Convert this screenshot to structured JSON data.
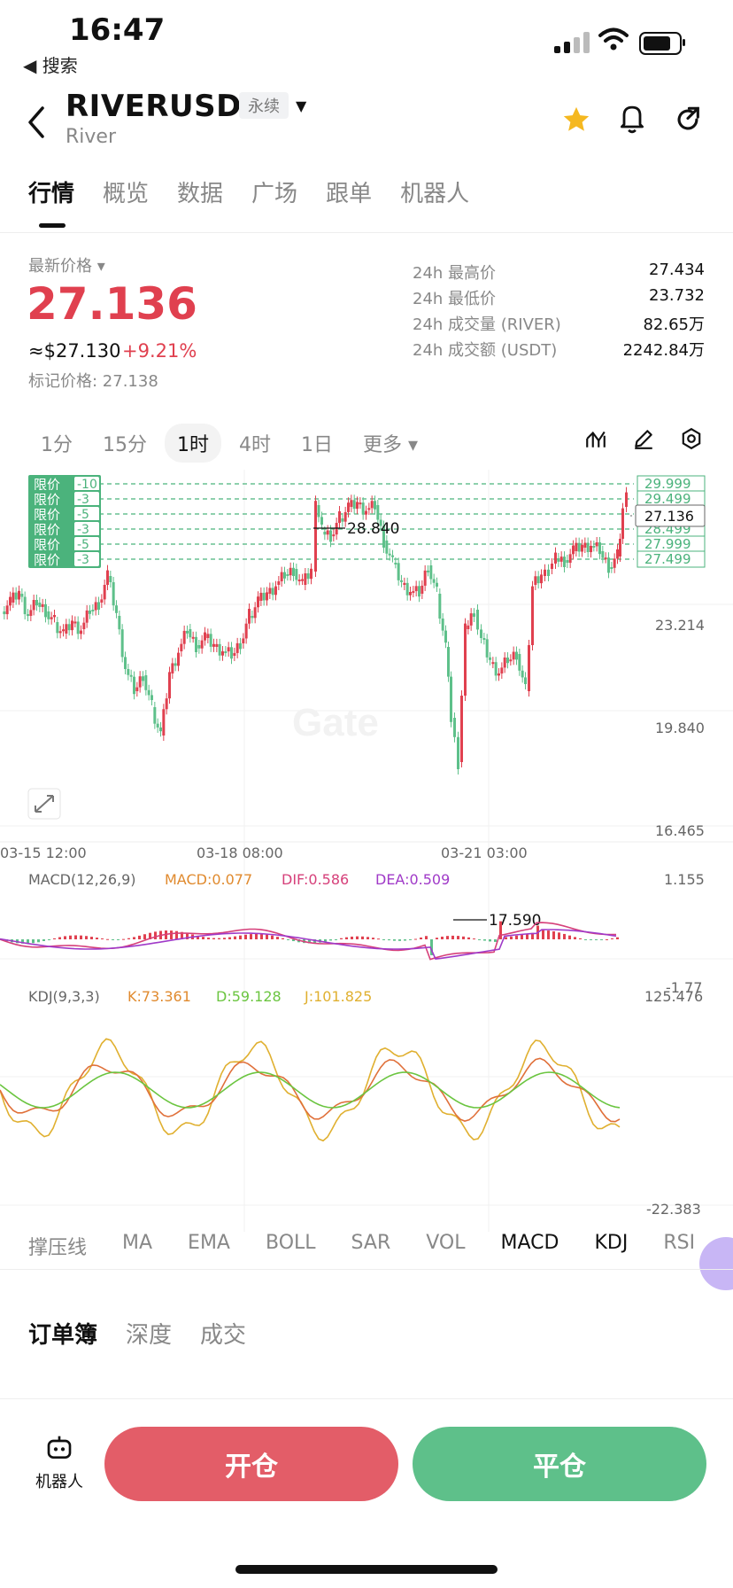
{
  "status": {
    "time": "16:47",
    "back_label": "◀ 搜索"
  },
  "header": {
    "pair": "RIVERUSDT",
    "badge": "永续",
    "sub": "River"
  },
  "tabs": [
    "行情",
    "概览",
    "数据",
    "广场",
    "跟单",
    "机器人"
  ],
  "ticker": {
    "last_label": "最新价格 ▾",
    "last_price": "27.136",
    "usd_price": "≈$27.130",
    "change": "+9.21%",
    "mark_price": "标记价格: 27.138",
    "stats": [
      {
        "k": "24h 最高价",
        "v": "27.434"
      },
      {
        "k": "24h 最低价",
        "v": "23.732"
      },
      {
        "k": "24h 成交量 (RIVER)",
        "v": "82.65万"
      },
      {
        "k": "24h 成交额 (USDT)",
        "v": "2242.84万"
      }
    ]
  },
  "timeframes": [
    "1分",
    "15分",
    "1时",
    "4时",
    "1日",
    "更多 ▾"
  ],
  "active_timeframe": "1时",
  "chart": {
    "order_tag": "限价",
    "orders": [
      {
        "qty": "-10",
        "price": "29.999"
      },
      {
        "qty": "-3",
        "price": "29.499"
      },
      {
        "qty": "-5",
        "price": "28.999"
      },
      {
        "qty": "-3",
        "price": "28.499"
      },
      {
        "qty": "-5",
        "price": "27.999"
      },
      {
        "qty": "-3",
        "price": "27.499"
      }
    ],
    "high_label": "28.840",
    "low_label": "17.590",
    "current_label": "27.136",
    "y_ticks": [
      "23.214",
      "19.840",
      "16.465"
    ],
    "x_ticks": [
      "03-15 12:00",
      "03-18 08:00",
      "03-21 03:00"
    ],
    "watermark": "Gate",
    "macd": {
      "title": "MACD(12,26,9)",
      "macd": "MACD:0.077",
      "dif": "DIF:0.586",
      "dea": "DEA:0.509",
      "top": "1.155",
      "bottom": "-1.77"
    },
    "kdj": {
      "title": "KDJ(9,3,3)",
      "k": "K:73.361",
      "d": "D:59.128",
      "j": "J:101.825",
      "top": "125.476",
      "bottom": "-22.383"
    }
  },
  "chart_data": {
    "type": "candlestick",
    "x_ticks": [
      "03-15 12:00",
      "03-18 08:00",
      "03-21 03:00"
    ],
    "y_ticks": [
      23.214,
      19.84,
      16.465
    ],
    "high": 28.84,
    "low": 17.59,
    "last": 27.136
  },
  "indicators": [
    "撑压线",
    "MA",
    "EMA",
    "BOLL",
    "SAR",
    "VOL",
    "MACD",
    "KDJ",
    "RSI"
  ],
  "orderbook_tabs": [
    "订单簿",
    "深度",
    "成交"
  ],
  "bottom": {
    "robot": "机器人",
    "open": "开仓",
    "close": "平仓"
  },
  "colors": {
    "up": "#e0404f",
    "down": "#5ec08a",
    "accent_star": "#f5b820"
  }
}
